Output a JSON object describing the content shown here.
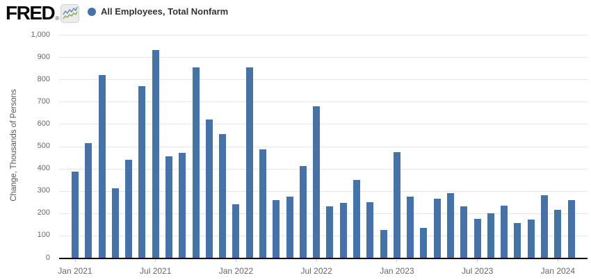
{
  "header": {
    "logo_text": "FRED",
    "logo_reg": "®",
    "logo_icon": "sparkline-chart-icon"
  },
  "legend": {
    "marker_color": "#4572a8",
    "label": "All Employees, Total Nonfarm"
  },
  "chart_data": {
    "type": "bar",
    "title": "",
    "series": [
      {
        "name": "All Employees, Total Nonfarm",
        "values": [
          385,
          515,
          820,
          310,
          440,
          770,
          930,
          455,
          470,
          855,
          620,
          555,
          240,
          855,
          485,
          260,
          275,
          410,
          680,
          230,
          245,
          350,
          250,
          125,
          475,
          275,
          135,
          265,
          290,
          230,
          175,
          200,
          235,
          155,
          170,
          280,
          215,
          260
        ]
      }
    ],
    "categories": [
      "Jan 2021",
      "Feb 2021",
      "Mar 2021",
      "Apr 2021",
      "May 2021",
      "Jun 2021",
      "Jul 2021",
      "Aug 2021",
      "Sep 2021",
      "Oct 2021",
      "Nov 2021",
      "Dec 2021",
      "Jan 2022",
      "Feb 2022",
      "Mar 2022",
      "Apr 2022",
      "May 2022",
      "Jun 2022",
      "Jul 2022",
      "Aug 2022",
      "Sep 2022",
      "Oct 2022",
      "Nov 2022",
      "Dec 2022",
      "Jan 2023",
      "Feb 2023",
      "Mar 2023",
      "Apr 2023",
      "May 2023",
      "Jun 2023",
      "Jul 2023",
      "Aug 2023",
      "Sep 2023",
      "Oct 2023",
      "Nov 2023",
      "Dec 2023",
      "Jan 2024",
      "Feb 2024"
    ],
    "ylabel": "Change, Thousands of Persons",
    "xlabel": "",
    "ylim": [
      0,
      1000
    ],
    "ytick_interval": 100,
    "ytick_labels": [
      "0",
      "100",
      "200",
      "300",
      "400",
      "500",
      "600",
      "700",
      "800",
      "900",
      "1,000"
    ],
    "xtick_labels": [
      "Jan 2021",
      "Jul 2021",
      "Jan 2022",
      "Jul 2022",
      "Jan 2023",
      "Jul 2023",
      "Jan 2024"
    ],
    "xtick_indices": [
      0,
      6,
      12,
      18,
      24,
      30,
      36
    ],
    "grid": true,
    "legend_position": "top-left",
    "bar_color": "#4572a8",
    "gridline_color": "#e6e6e6",
    "axis_line_color": "#000000",
    "tick_label_color": "#666666"
  }
}
